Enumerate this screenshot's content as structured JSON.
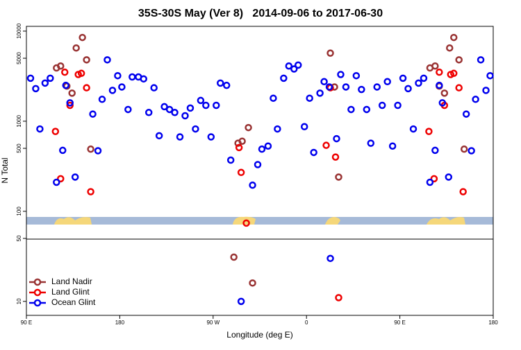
{
  "chart_data": {
    "type": "scatter",
    "title": "35S-30S May (Ver 8)   2014-09-06 to 2017-06-30",
    "x_label": "Longitude (deg E)",
    "y_label": "N Total",
    "log_y": true,
    "legend": "lower left",
    "xlim": [
      90,
      540
    ],
    "ylim": [
      7,
      11300
    ],
    "xticks": [
      {
        "value": 90,
        "label": "90 E"
      },
      180,
      {
        "value": 270,
        "label": "90 W"
      },
      {
        "value": 360,
        "label": "0"
      },
      {
        "value": 450,
        "label": "90 E"
      },
      {
        "value": 540,
        "label": "180"
      }
    ],
    "yticks": [
      10,
      50,
      100,
      500,
      1000,
      5000,
      10000
    ],
    "series": [
      {
        "name": "Land Nadir",
        "color": "#993333",
        "x": [
          119,
          123,
          129,
          134,
          138,
          144,
          148,
          152,
          290,
          294,
          298,
          304,
          308,
          383,
          387,
          391,
          479,
          484,
          488,
          493,
          498,
          502,
          507,
          512
        ],
        "values": [
          3900,
          4100,
          2450,
          2050,
          6500,
          8500,
          4800,
          490,
          31,
          570,
          600,
          850,
          16,
          5700,
          2400,
          240,
          3900,
          4100,
          2450,
          2050,
          6500,
          8500,
          4800,
          490
        ]
      },
      {
        "name": "Land Glint",
        "color": "#ee0000",
        "x": [
          118,
          123,
          127,
          132,
          140,
          143,
          148,
          152,
          295,
          297,
          302,
          379,
          383,
          388,
          391,
          478,
          483,
          488,
          493,
          499,
          502,
          507,
          511
        ],
        "values": [
          770,
          230,
          3500,
          1500,
          3300,
          3400,
          2350,
          165,
          510,
          270,
          74,
          540,
          2350,
          400,
          11,
          770,
          230,
          3500,
          1500,
          3300,
          3400,
          2350,
          165
        ]
      },
      {
        "name": "Ocean Glint",
        "color": "#0000ee",
        "x": [
          94,
          99,
          103,
          108,
          113,
          119,
          125,
          128,
          132,
          137,
          154,
          159,
          163,
          168,
          173,
          178,
          182,
          188,
          192,
          198,
          203,
          208,
          213,
          218,
          223,
          228,
          233,
          238,
          243,
          248,
          253,
          258,
          263,
          268,
          273,
          277,
          283,
          287,
          297,
          308,
          313,
          317,
          323,
          328,
          332,
          338,
          343,
          348,
          352,
          358,
          363,
          367,
          373,
          377,
          382,
          383,
          389,
          393,
          398,
          403,
          408,
          413,
          418,
          422,
          428,
          433,
          438,
          443,
          448,
          453,
          458,
          463,
          468,
          473,
          479,
          484,
          488,
          491,
          497,
          514,
          519,
          523,
          528,
          533,
          537
        ],
        "values": [
          3000,
          2300,
          820,
          2650,
          3000,
          210,
          475,
          2500,
          1600,
          240,
          1200,
          470,
          1750,
          4800,
          2200,
          3200,
          2400,
          1350,
          3100,
          3100,
          2950,
          1250,
          2350,
          690,
          1450,
          1350,
          1250,
          670,
          1150,
          1400,
          820,
          1700,
          1500,
          670,
          1500,
          2650,
          2500,
          370,
          10,
          195,
          330,
          490,
          530,
          1800,
          820,
          3000,
          4100,
          3800,
          4200,
          870,
          1800,
          450,
          2050,
          2750,
          2400,
          30,
          640,
          3300,
          2400,
          1350,
          3200,
          2250,
          1350,
          570,
          2400,
          1500,
          2750,
          530,
          1500,
          3000,
          2300,
          820,
          2650,
          3000,
          210,
          475,
          2500,
          1600,
          240,
          1200,
          470,
          1750,
          4800,
          2200,
          3200
        ]
      }
    ]
  }
}
